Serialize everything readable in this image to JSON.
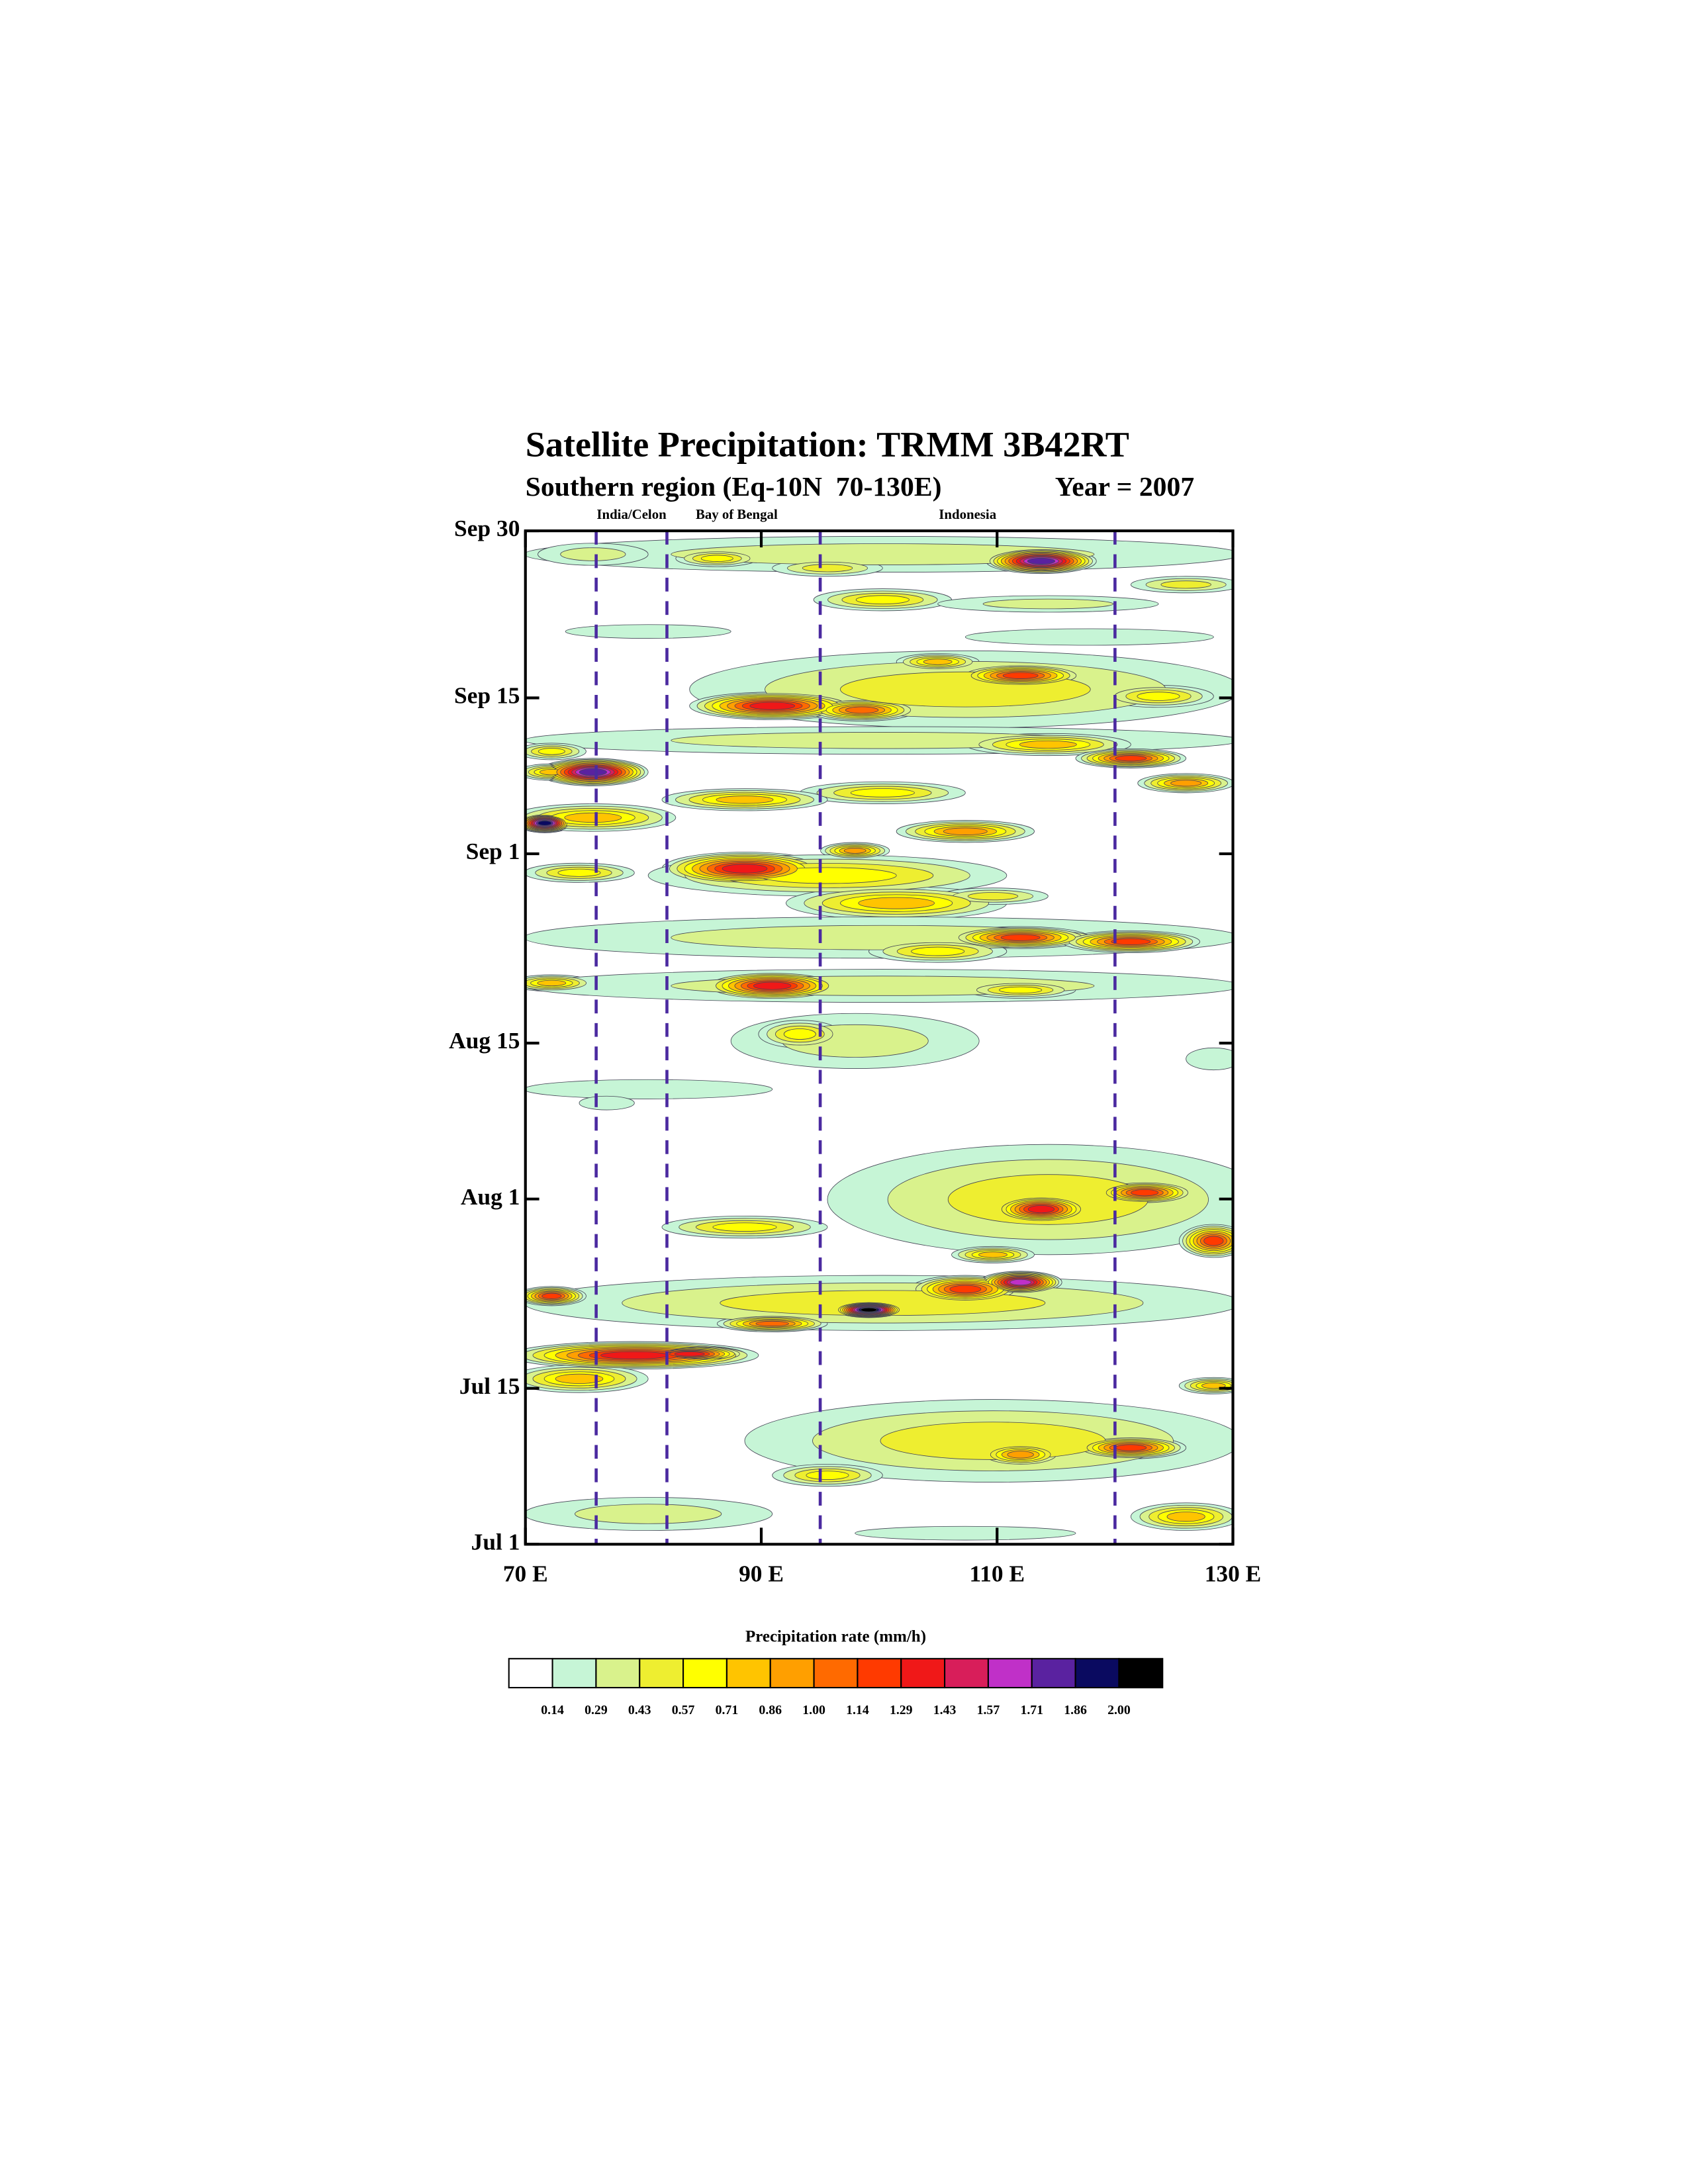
{
  "chart_data": {
    "type": "hovmoller",
    "title": "Satellite Precipitation: TRMM 3B42RT",
    "subtitle": "Southern region (Eq-10N  70-130E)",
    "year_label": "Year = 2007",
    "region_labels": [
      "India/Celon",
      "Bay of Bengal",
      "Indonesia"
    ],
    "region_boundaries": [
      76,
      82,
      95,
      120
    ],
    "boundary_color": "#4b2aa0",
    "xlim": [
      70,
      130
    ],
    "xticks": [
      {
        "value": 70,
        "label": "70 E"
      },
      {
        "value": 90,
        "label": "90 E"
      },
      {
        "value": 110,
        "label": "110 E"
      },
      {
        "value": 130,
        "label": "130 E"
      }
    ],
    "ylim": [
      0,
      91
    ],
    "yticks": [
      {
        "value": 0,
        "label": "Jul 1"
      },
      {
        "value": 14,
        "label": "Jul 15"
      },
      {
        "value": 31,
        "label": "Aug 1"
      },
      {
        "value": 45,
        "label": "Aug 15"
      },
      {
        "value": 62,
        "label": "Sep 1"
      },
      {
        "value": 76,
        "label": "Sep 15"
      },
      {
        "value": 91,
        "label": "Sep 30"
      }
    ],
    "colorbar": {
      "label": "Precipitation rate (mm/h)",
      "levels": [
        0.14,
        0.29,
        0.43,
        0.57,
        0.71,
        0.86,
        1.0,
        1.14,
        1.29,
        1.43,
        1.57,
        1.71,
        1.86,
        2.0
      ],
      "level_labels": [
        "0.14",
        "0.29",
        "0.43",
        "0.57",
        "0.71",
        "0.86",
        "1.00",
        "1.14",
        "1.29",
        "1.43",
        "1.57",
        "1.71",
        "1.86",
        "2.00"
      ],
      "colors": [
        "#ffffff",
        "#c6f5d6",
        "#d9f28c",
        "#eeee30",
        "#ffff00",
        "#ffc400",
        "#ff9f00",
        "#ff6a00",
        "#ff3a00",
        "#f01818",
        "#d81e5a",
        "#c030c8",
        "#5a22a0",
        "#0a0a60",
        "#000000"
      ]
    }
  }
}
